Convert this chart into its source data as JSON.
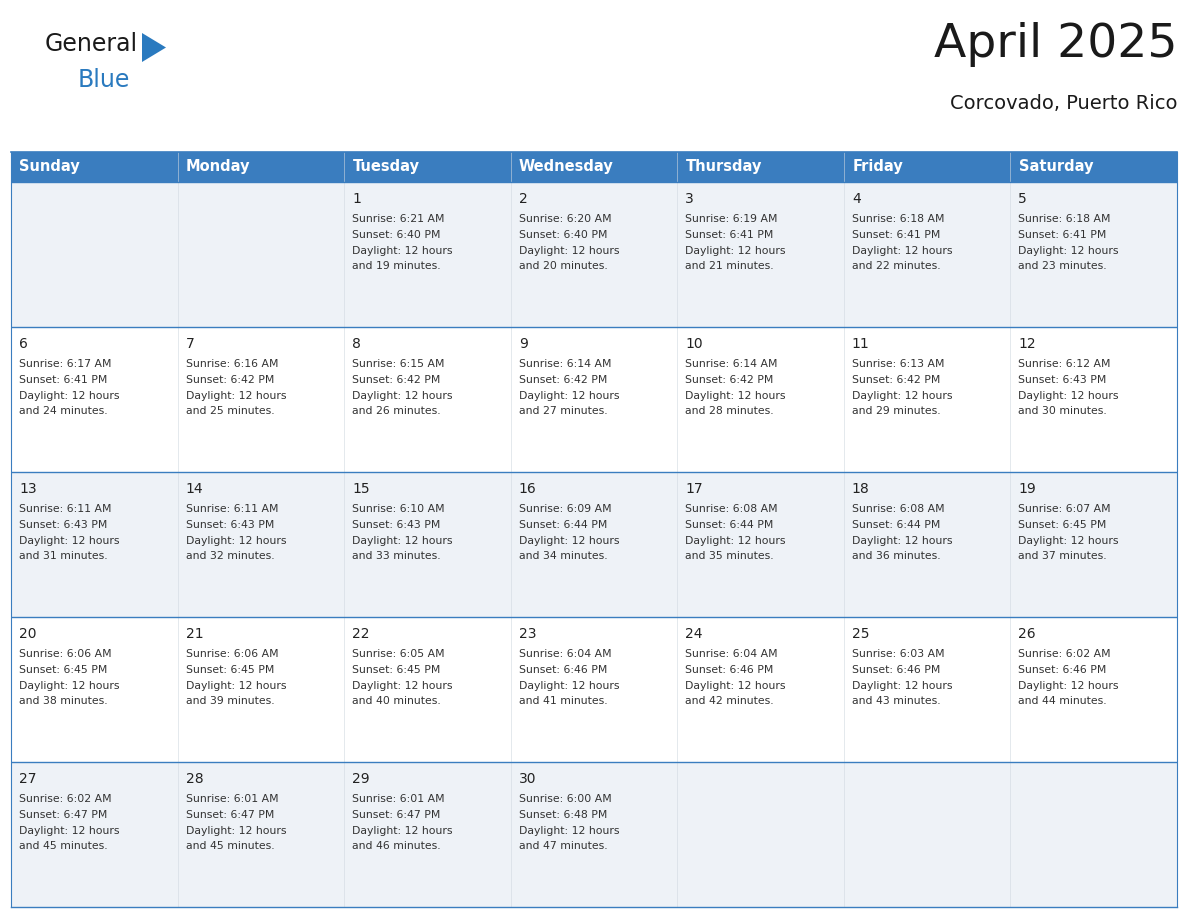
{
  "title": "April 2025",
  "subtitle": "Corcovado, Puerto Rico",
  "header_color": "#3a7dbf",
  "header_text_color": "#ffffff",
  "cell_bg_even": "#eef2f7",
  "cell_bg_odd": "#ffffff",
  "border_color": "#3a7dbf",
  "day_headers": [
    "Sunday",
    "Monday",
    "Tuesday",
    "Wednesday",
    "Thursday",
    "Friday",
    "Saturday"
  ],
  "weeks": [
    [
      {
        "day": "",
        "sunrise": "",
        "sunset": "",
        "daylight": ""
      },
      {
        "day": "",
        "sunrise": "",
        "sunset": "",
        "daylight": ""
      },
      {
        "day": "1",
        "sunrise": "Sunrise: 6:21 AM",
        "sunset": "Sunset: 6:40 PM",
        "daylight": "Daylight: 12 hours\nand 19 minutes."
      },
      {
        "day": "2",
        "sunrise": "Sunrise: 6:20 AM",
        "sunset": "Sunset: 6:40 PM",
        "daylight": "Daylight: 12 hours\nand 20 minutes."
      },
      {
        "day": "3",
        "sunrise": "Sunrise: 6:19 AM",
        "sunset": "Sunset: 6:41 PM",
        "daylight": "Daylight: 12 hours\nand 21 minutes."
      },
      {
        "day": "4",
        "sunrise": "Sunrise: 6:18 AM",
        "sunset": "Sunset: 6:41 PM",
        "daylight": "Daylight: 12 hours\nand 22 minutes."
      },
      {
        "day": "5",
        "sunrise": "Sunrise: 6:18 AM",
        "sunset": "Sunset: 6:41 PM",
        "daylight": "Daylight: 12 hours\nand 23 minutes."
      }
    ],
    [
      {
        "day": "6",
        "sunrise": "Sunrise: 6:17 AM",
        "sunset": "Sunset: 6:41 PM",
        "daylight": "Daylight: 12 hours\nand 24 minutes."
      },
      {
        "day": "7",
        "sunrise": "Sunrise: 6:16 AM",
        "sunset": "Sunset: 6:42 PM",
        "daylight": "Daylight: 12 hours\nand 25 minutes."
      },
      {
        "day": "8",
        "sunrise": "Sunrise: 6:15 AM",
        "sunset": "Sunset: 6:42 PM",
        "daylight": "Daylight: 12 hours\nand 26 minutes."
      },
      {
        "day": "9",
        "sunrise": "Sunrise: 6:14 AM",
        "sunset": "Sunset: 6:42 PM",
        "daylight": "Daylight: 12 hours\nand 27 minutes."
      },
      {
        "day": "10",
        "sunrise": "Sunrise: 6:14 AM",
        "sunset": "Sunset: 6:42 PM",
        "daylight": "Daylight: 12 hours\nand 28 minutes."
      },
      {
        "day": "11",
        "sunrise": "Sunrise: 6:13 AM",
        "sunset": "Sunset: 6:42 PM",
        "daylight": "Daylight: 12 hours\nand 29 minutes."
      },
      {
        "day": "12",
        "sunrise": "Sunrise: 6:12 AM",
        "sunset": "Sunset: 6:43 PM",
        "daylight": "Daylight: 12 hours\nand 30 minutes."
      }
    ],
    [
      {
        "day": "13",
        "sunrise": "Sunrise: 6:11 AM",
        "sunset": "Sunset: 6:43 PM",
        "daylight": "Daylight: 12 hours\nand 31 minutes."
      },
      {
        "day": "14",
        "sunrise": "Sunrise: 6:11 AM",
        "sunset": "Sunset: 6:43 PM",
        "daylight": "Daylight: 12 hours\nand 32 minutes."
      },
      {
        "day": "15",
        "sunrise": "Sunrise: 6:10 AM",
        "sunset": "Sunset: 6:43 PM",
        "daylight": "Daylight: 12 hours\nand 33 minutes."
      },
      {
        "day": "16",
        "sunrise": "Sunrise: 6:09 AM",
        "sunset": "Sunset: 6:44 PM",
        "daylight": "Daylight: 12 hours\nand 34 minutes."
      },
      {
        "day": "17",
        "sunrise": "Sunrise: 6:08 AM",
        "sunset": "Sunset: 6:44 PM",
        "daylight": "Daylight: 12 hours\nand 35 minutes."
      },
      {
        "day": "18",
        "sunrise": "Sunrise: 6:08 AM",
        "sunset": "Sunset: 6:44 PM",
        "daylight": "Daylight: 12 hours\nand 36 minutes."
      },
      {
        "day": "19",
        "sunrise": "Sunrise: 6:07 AM",
        "sunset": "Sunset: 6:45 PM",
        "daylight": "Daylight: 12 hours\nand 37 minutes."
      }
    ],
    [
      {
        "day": "20",
        "sunrise": "Sunrise: 6:06 AM",
        "sunset": "Sunset: 6:45 PM",
        "daylight": "Daylight: 12 hours\nand 38 minutes."
      },
      {
        "day": "21",
        "sunrise": "Sunrise: 6:06 AM",
        "sunset": "Sunset: 6:45 PM",
        "daylight": "Daylight: 12 hours\nand 39 minutes."
      },
      {
        "day": "22",
        "sunrise": "Sunrise: 6:05 AM",
        "sunset": "Sunset: 6:45 PM",
        "daylight": "Daylight: 12 hours\nand 40 minutes."
      },
      {
        "day": "23",
        "sunrise": "Sunrise: 6:04 AM",
        "sunset": "Sunset: 6:46 PM",
        "daylight": "Daylight: 12 hours\nand 41 minutes."
      },
      {
        "day": "24",
        "sunrise": "Sunrise: 6:04 AM",
        "sunset": "Sunset: 6:46 PM",
        "daylight": "Daylight: 12 hours\nand 42 minutes."
      },
      {
        "day": "25",
        "sunrise": "Sunrise: 6:03 AM",
        "sunset": "Sunset: 6:46 PM",
        "daylight": "Daylight: 12 hours\nand 43 minutes."
      },
      {
        "day": "26",
        "sunrise": "Sunrise: 6:02 AM",
        "sunset": "Sunset: 6:46 PM",
        "daylight": "Daylight: 12 hours\nand 44 minutes."
      }
    ],
    [
      {
        "day": "27",
        "sunrise": "Sunrise: 6:02 AM",
        "sunset": "Sunset: 6:47 PM",
        "daylight": "Daylight: 12 hours\nand 45 minutes."
      },
      {
        "day": "28",
        "sunrise": "Sunrise: 6:01 AM",
        "sunset": "Sunset: 6:47 PM",
        "daylight": "Daylight: 12 hours\nand 45 minutes."
      },
      {
        "day": "29",
        "sunrise": "Sunrise: 6:01 AM",
        "sunset": "Sunset: 6:47 PM",
        "daylight": "Daylight: 12 hours\nand 46 minutes."
      },
      {
        "day": "30",
        "sunrise": "Sunrise: 6:00 AM",
        "sunset": "Sunset: 6:48 PM",
        "daylight": "Daylight: 12 hours\nand 47 minutes."
      },
      {
        "day": "",
        "sunrise": "",
        "sunset": "",
        "daylight": ""
      },
      {
        "day": "",
        "sunrise": "",
        "sunset": "",
        "daylight": ""
      },
      {
        "day": "",
        "sunrise": "",
        "sunset": "",
        "daylight": ""
      }
    ]
  ],
  "logo_text_general": "General",
  "logo_text_blue": "Blue",
  "logo_color_general": "#1a1a1a",
  "logo_color_blue": "#2a7abf",
  "logo_triangle_color": "#2a7abf",
  "title_fontsize": 34,
  "subtitle_fontsize": 14,
  "header_fontsize": 10.5,
  "day_num_fontsize": 10,
  "cell_text_fontsize": 7.8
}
